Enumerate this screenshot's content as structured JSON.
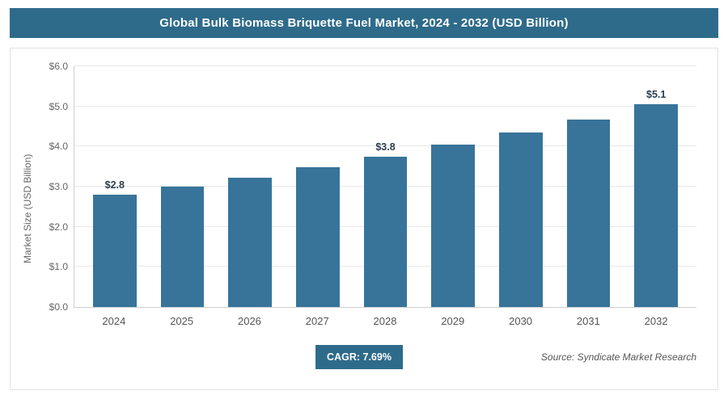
{
  "header": {
    "title": "Global Bulk Biomass Briquette Fuel Market, 2024 - 2032 (USD Billion)"
  },
  "footer": {
    "cagr_label": "CAGR: 7.69%",
    "source": "Source: Syndicate Market Research"
  },
  "colors": {
    "header_bg": "#2e6b8a",
    "bar": "#38749a",
    "badge_bg": "#2e6b8a"
  },
  "chart_data": {
    "type": "bar",
    "title": "Global Bulk Biomass Briquette Fuel Market, 2024 - 2032 (USD Billion)",
    "xlabel": "",
    "ylabel": "Market Size (USD Billion)",
    "categories": [
      "2024",
      "2025",
      "2026",
      "2027",
      "2028",
      "2029",
      "2030",
      "2031",
      "2032"
    ],
    "values": [
      2.8,
      3.0,
      3.22,
      3.48,
      3.75,
      4.05,
      4.35,
      4.68,
      5.05
    ],
    "point_labels": [
      "$2.8",
      "",
      "",
      "",
      "$3.8",
      "",
      "",
      "",
      "$5.1"
    ],
    "ylim": [
      0,
      6
    ],
    "ytick_values": [
      0,
      1,
      2,
      3,
      4,
      5,
      6
    ],
    "ytick_labels": [
      "$0.0",
      "$1.0",
      "$2.0",
      "$3.0",
      "$4.0",
      "$5.0",
      "$6.0"
    ],
    "grid": true,
    "legend": "none"
  }
}
